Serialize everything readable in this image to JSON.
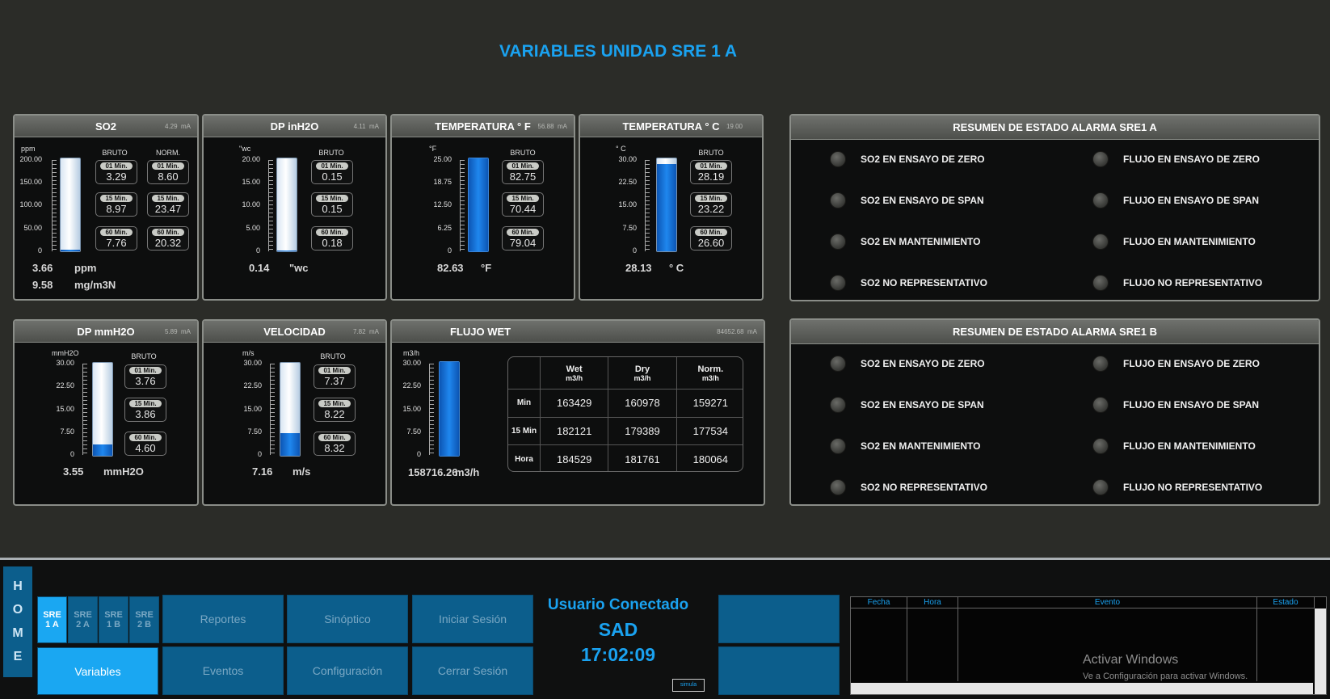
{
  "title": "VARIABLES UNIDAD SRE 1 A",
  "so2": {
    "title": "SO2",
    "ma": "4.29",
    "ma_unit": "mA",
    "scale_unit": "ppm",
    "ticks": [
      "200.00",
      "150.00",
      "100.00",
      "50.00",
      "0"
    ],
    "bruto": "BRUTO",
    "norm": "NORM.",
    "level": 0.02,
    "b1_label": "01 Min.",
    "b1": "3.29",
    "b15_label": "15 Min.",
    "b15": "8.97",
    "b60_label": "60 Min.",
    "b60": "7.76",
    "n1_label": "01 Min.",
    "n1": "8.60",
    "n15_label": "15 Min.",
    "n15": "23.47",
    "n60_label": "60 Min.",
    "n60": "20.32",
    "reading1": "3.66",
    "reading1_unit": "ppm",
    "reading2": "9.58",
    "reading2_unit": "mg/m3N"
  },
  "dpin": {
    "title": "DP inH2O",
    "ma": "4.11",
    "ma_unit": "mA",
    "scale_unit": "\"wc",
    "ticks": [
      "20.00",
      "15.00",
      "10.00",
      "5.00",
      "0"
    ],
    "bruto": "BRUTO",
    "level": 0.007,
    "b1_label": "01 Min.",
    "b1": "0.15",
    "b15_label": "15 Min.",
    "b15": "0.15",
    "b60_label": "60 Min.",
    "b60": "0.18",
    "reading": "0.14",
    "reading_unit": "\"wc"
  },
  "tempf": {
    "title": "TEMPERATURA ° F",
    "ma": "56.88",
    "ma_unit": "mA",
    "scale_unit": "°F",
    "ticks": [
      "25.00",
      "18.75",
      "12.50",
      "6.25",
      "0"
    ],
    "bruto": "BRUTO",
    "level": 1.0,
    "b1_label": "01 Min.",
    "b1": "82.75",
    "b15_label": "15 Min.",
    "b15": "70.44",
    "b60_label": "60 Min.",
    "b60": "79.04",
    "reading": "82.63",
    "reading_unit": "°F"
  },
  "tempc": {
    "title": "TEMPERATURA ° C",
    "ma": "19.00",
    "scale_unit": "° C",
    "ticks": [
      "30.00",
      "22.50",
      "15.00",
      "7.50",
      "0"
    ],
    "bruto": "BRUTO",
    "level": 0.94,
    "b1_label": "01 Min.",
    "b1": "28.19",
    "b15_label": "15 Min.",
    "b15": "23.22",
    "b60_label": "60 Min.",
    "b60": "26.60",
    "reading": "28.13",
    "reading_unit": "° C"
  },
  "dpmm": {
    "title": "DP mmH2O",
    "ma": "5.89",
    "ma_unit": "mA",
    "scale_unit": "mmH2O",
    "ticks": [
      "30.00",
      "22.50",
      "15.00",
      "7.50",
      "0"
    ],
    "bruto": "BRUTO",
    "level": 0.12,
    "b1_label": "01 Min.",
    "b1": "3.76",
    "b15_label": "15 Min.",
    "b15": "3.86",
    "b60_label": "60 Min.",
    "b60": "4.60",
    "reading": "3.55",
    "reading_unit": "mmH2O"
  },
  "vel": {
    "title": "VELOCIDAD",
    "ma": "7.82",
    "ma_unit": "mA",
    "scale_unit": "m/s",
    "ticks": [
      "30.00",
      "22.50",
      "15.00",
      "7.50",
      "0"
    ],
    "bruto": "BRUTO",
    "level": 0.24,
    "b1_label": "01 Min.",
    "b1": "7.37",
    "b15_label": "15 Min.",
    "b15": "8.22",
    "b60_label": "60 Min.",
    "b60": "8.32",
    "reading": "7.16",
    "reading_unit": "m/s"
  },
  "flujo": {
    "title": "FLUJO WET",
    "ma": "84652.68",
    "ma_unit": "mA",
    "scale_unit": "m3/h",
    "ticks": [
      "30.00",
      "22.50",
      "15.00",
      "7.50",
      "0"
    ],
    "level": 1.0,
    "reading": "158716.26",
    "reading_unit": "m3/h",
    "cols": [
      {
        "h": "Wet",
        "u": "m3/h"
      },
      {
        "h": "Dry",
        "u": "m3/h"
      },
      {
        "h": "Norm.",
        "u": "m3/h"
      }
    ],
    "rows": [
      {
        "label": "Min",
        "wet": "163429",
        "dry": "160978",
        "norm": "159271"
      },
      {
        "label": "15 Min",
        "wet": "182121",
        "dry": "179389",
        "norm": "177534"
      },
      {
        "label": "Hora",
        "wet": "184529",
        "dry": "181761",
        "norm": "180064"
      }
    ]
  },
  "alarm_a": {
    "title": "RESUMEN DE ESTADO ALARMA SRE1 A",
    "left": [
      "SO2 EN ENSAYO DE ZERO",
      "SO2 EN ENSAYO DE SPAN",
      "SO2 EN MANTENIMIENTO",
      "SO2 NO REPRESENTATIVO"
    ],
    "right": [
      "FLUJO EN ENSAYO DE ZERO",
      "FLUJO EN ENSAYO DE SPAN",
      "FLUJO EN MANTENIMIENTO",
      "FLUJO NO REPRESENTATIVO"
    ]
  },
  "alarm_b": {
    "title": "RESUMEN DE ESTADO ALARMA SRE1 B",
    "left": [
      "SO2 EN ENSAYO DE ZERO",
      "SO2 EN ENSAYO DE SPAN",
      "SO2 EN MANTENIMIENTO",
      "SO2 NO REPRESENTATIVO"
    ],
    "right": [
      "FLUJO EN ENSAYO DE ZERO",
      "FLUJO EN ENSAYO DE SPAN",
      "FLUJO EN MANTENIMIENTO",
      "FLUJO NO REPRESENTATIVO"
    ]
  },
  "nav": {
    "home": [
      "H",
      "O",
      "M",
      "E"
    ],
    "units": [
      {
        "a": "SRE",
        "b": "1 A"
      },
      {
        "a": "SRE",
        "b": "2 A"
      },
      {
        "a": "SRE",
        "b": "1 B"
      },
      {
        "a": "SRE",
        "b": "2 B"
      }
    ],
    "variables": "Variables",
    "reportes": "Reportes",
    "eventos": "Eventos",
    "sinoptico": "Sinóptico",
    "configuracion": "Configuración",
    "iniciar": "Iniciar Sesión",
    "cerrar": "Cerrar Sesión"
  },
  "user": {
    "label": "Usuario Conectado",
    "name": "SAD",
    "time": "17:02:09",
    "simula": "simula"
  },
  "events": {
    "fecha": "Fecha",
    "hora": "Hora",
    "evento": "Evento",
    "estado": "Estado"
  },
  "watermark": {
    "line1": "Activar Windows",
    "line2": "Ve a Configuración para activar Windows."
  },
  "colors": {
    "accent": "#1aa2f0",
    "button": "#0c5e8c",
    "button_active": "#1aa7f2",
    "panel": "#0d0e0e"
  }
}
